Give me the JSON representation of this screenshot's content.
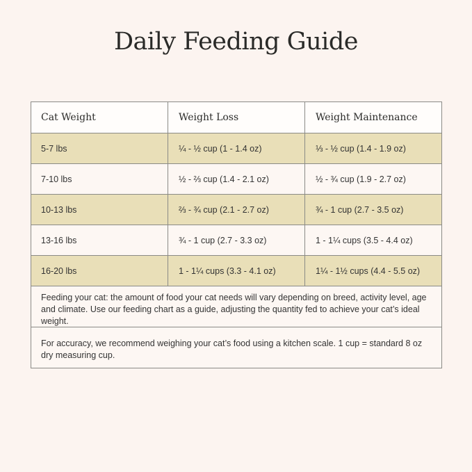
{
  "title": "Daily Feeding Guide",
  "table": {
    "headers": [
      "Cat Weight",
      "Weight Loss",
      "Weight Maintenance"
    ],
    "rows": [
      [
        "5-7 lbs",
        "¼ - ½ cup (1 - 1.4 oz)",
        "⅓ - ½ cup (1.4 - 1.9 oz)"
      ],
      [
        "7-10 lbs",
        "½ - ⅔ cup (1.4 - 2.1 oz)",
        "½ - ¾ cup (1.9 - 2.7 oz)"
      ],
      [
        "10-13 lbs",
        "⅔ - ¾ cup (2.1 - 2.7 oz)",
        "¾ - 1 cup (2.7 - 3.5 oz)"
      ],
      [
        "13-16 lbs",
        "¾ - 1 cup (2.7 - 3.3 oz)",
        "1 - 1¼ cups (3.5 - 4.4 oz)"
      ],
      [
        "16-20 lbs",
        "1 - 1¼ cups (3.3 - 4.1 oz)",
        "1¼ - 1½ cups (4.4 - 5.5 oz)"
      ]
    ]
  },
  "notes": [
    "Feeding your cat: the amount of food your cat needs will vary depending on breed, activity level, age and climate. Use our feeding chart as a guide, adjusting the quantity fed to achieve your cat’s ideal weight.",
    "For accuracy, we recommend weighing your cat’s food using a kitchen scale. 1 cup = standard 8 oz dry measuring cup."
  ],
  "colors": {
    "background": "#fcf4f0",
    "row_tan": "#e9dfb8",
    "row_light": "#fdf7f3",
    "border": "#8a8a86"
  }
}
